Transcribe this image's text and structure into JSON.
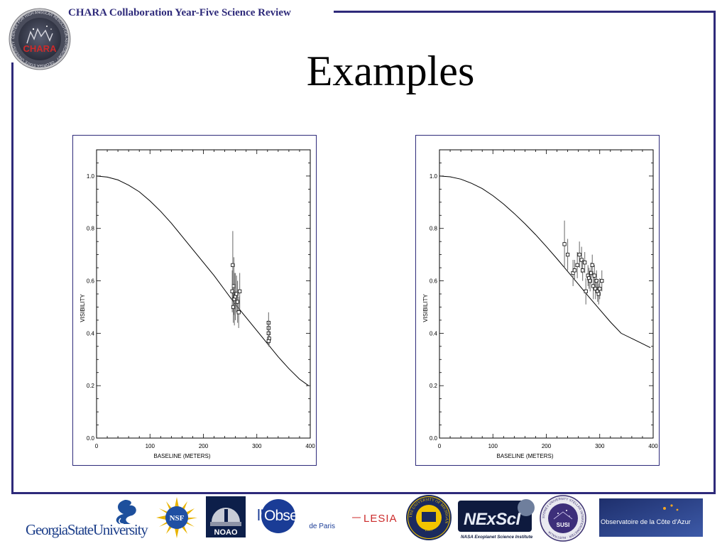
{
  "header": {
    "title": "CHARA Collaboration Year-Five Science Review"
  },
  "slide": {
    "title": "Examples"
  },
  "chara_logo": {
    "text": "CHARA",
    "ring_text": "CENTER FOR HIGH ANGULAR RESOLUTION ASTRONOMY · GEORGIA STATE UNIVERSITY"
  },
  "colors": {
    "frame": "#2e2a7a",
    "header_text": "#2e2a7a",
    "plot_ink": "#000000"
  },
  "chart_data": [
    {
      "type": "scatter",
      "title": "",
      "xlabel": "BASELINE (METERS)",
      "ylabel": "VISIBILITY",
      "xlim": [
        0,
        400
      ],
      "ylim": [
        0,
        1.1
      ],
      "xticks": [
        0,
        100,
        200,
        300,
        400
      ],
      "yticks": [
        0.0,
        0.2,
        0.4,
        0.6,
        0.8,
        1.0
      ],
      "ytick_labels": [
        "0.0",
        "0.2",
        "0.4",
        "0.6",
        "0.8",
        "1.0"
      ],
      "grid": false,
      "model_curve": {
        "x": [
          0,
          20,
          40,
          60,
          80,
          100,
          120,
          140,
          160,
          180,
          200,
          220,
          240,
          260,
          280,
          300,
          320,
          340,
          360,
          380,
          397
        ],
        "y": [
          1.0,
          0.996,
          0.985,
          0.965,
          0.94,
          0.905,
          0.865,
          0.82,
          0.77,
          0.72,
          0.67,
          0.62,
          0.565,
          0.51,
          0.46,
          0.41,
          0.36,
          0.31,
          0.265,
          0.225,
          0.2
        ]
      },
      "points": [
        {
          "x": 255,
          "y": 0.66,
          "err": 0.13
        },
        {
          "x": 257,
          "y": 0.58,
          "err": 0.11
        },
        {
          "x": 254,
          "y": 0.56,
          "err": 0.08
        },
        {
          "x": 256,
          "y": 0.5,
          "err": 0.06
        },
        {
          "x": 258,
          "y": 0.53,
          "err": 0.1
        },
        {
          "x": 260,
          "y": 0.54,
          "err": 0.09
        },
        {
          "x": 262,
          "y": 0.55,
          "err": 0.07
        },
        {
          "x": 264,
          "y": 0.52,
          "err": 0.08
        },
        {
          "x": 266,
          "y": 0.48,
          "err": 0.06
        },
        {
          "x": 268,
          "y": 0.56,
          "err": 0.07
        },
        {
          "x": 322,
          "y": 0.44,
          "err": 0.04
        },
        {
          "x": 322,
          "y": 0.42,
          "err": 0.03
        },
        {
          "x": 322,
          "y": 0.4,
          "err": 0.03
        },
        {
          "x": 323,
          "y": 0.38,
          "err": 0.03
        },
        {
          "x": 322,
          "y": 0.37,
          "err": 0.02
        }
      ]
    },
    {
      "type": "scatter",
      "title": "",
      "xlabel": "BASELINE (METERS)",
      "ylabel": "VISIBILITY",
      "xlim": [
        0,
        400
      ],
      "ylim": [
        0,
        1.1
      ],
      "xticks": [
        0,
        100,
        200,
        300,
        400
      ],
      "yticks": [
        0.0,
        0.2,
        0.4,
        0.6,
        0.8,
        1.0
      ],
      "ytick_labels": [
        "0.0",
        "0.2",
        "0.4",
        "0.6",
        "0.8",
        "1.0"
      ],
      "grid": false,
      "model_curve": {
        "x": [
          0,
          20,
          40,
          60,
          80,
          100,
          120,
          140,
          160,
          180,
          200,
          220,
          240,
          260,
          280,
          300,
          320,
          340,
          360,
          380,
          395
        ],
        "y": [
          1.0,
          0.997,
          0.988,
          0.972,
          0.952,
          0.925,
          0.893,
          0.857,
          0.818,
          0.776,
          0.731,
          0.684,
          0.636,
          0.587,
          0.538,
          0.49,
          0.443,
          0.4,
          0.38,
          0.36,
          0.345
        ]
      },
      "points": [
        {
          "x": 234,
          "y": 0.74,
          "err": 0.09
        },
        {
          "x": 240,
          "y": 0.7,
          "err": 0.06
        },
        {
          "x": 250,
          "y": 0.63,
          "err": 0.05
        },
        {
          "x": 253,
          "y": 0.64,
          "err": 0.04
        },
        {
          "x": 258,
          "y": 0.66,
          "err": 0.05
        },
        {
          "x": 262,
          "y": 0.7,
          "err": 0.05
        },
        {
          "x": 266,
          "y": 0.68,
          "err": 0.05
        },
        {
          "x": 268,
          "y": 0.64,
          "err": 0.04
        },
        {
          "x": 272,
          "y": 0.67,
          "err": 0.04
        },
        {
          "x": 274,
          "y": 0.56,
          "err": 0.05
        },
        {
          "x": 278,
          "y": 0.62,
          "err": 0.04
        },
        {
          "x": 280,
          "y": 0.61,
          "err": 0.04
        },
        {
          "x": 282,
          "y": 0.6,
          "err": 0.04
        },
        {
          "x": 284,
          "y": 0.63,
          "err": 0.04
        },
        {
          "x": 286,
          "y": 0.66,
          "err": 0.04
        },
        {
          "x": 288,
          "y": 0.58,
          "err": 0.05
        },
        {
          "x": 290,
          "y": 0.62,
          "err": 0.04
        },
        {
          "x": 292,
          "y": 0.57,
          "err": 0.04
        },
        {
          "x": 294,
          "y": 0.6,
          "err": 0.04
        },
        {
          "x": 296,
          "y": 0.56,
          "err": 0.04
        },
        {
          "x": 298,
          "y": 0.55,
          "err": 0.04
        },
        {
          "x": 300,
          "y": 0.57,
          "err": 0.04
        },
        {
          "x": 304,
          "y": 0.6,
          "err": 0.04
        }
      ]
    }
  ],
  "logos": {
    "gsu": {
      "text": "GeorgiaStateUniversity"
    },
    "nsf": {
      "text": "NSF"
    },
    "noao": {
      "text": "NOAO"
    },
    "observatoire": {
      "prefix": "l'",
      "name": "Observatoire",
      "sub": "de Paris"
    },
    "lesia": {
      "text": "LESIA"
    },
    "michigan": {
      "text": "THE UNIVERSITY OF MICHIGAN",
      "year": "1817"
    },
    "nexsci": {
      "text": "NExScI",
      "sub": "NASA Exoplanet Science Institute"
    },
    "susi": {
      "text": "SUSI",
      "ring": "SYDNEY UNIVERSITY STELLAR INTERFEROMETER · AUSTRALIA"
    },
    "oca": {
      "text": "Observatoire de la Côte d'Azur"
    }
  }
}
